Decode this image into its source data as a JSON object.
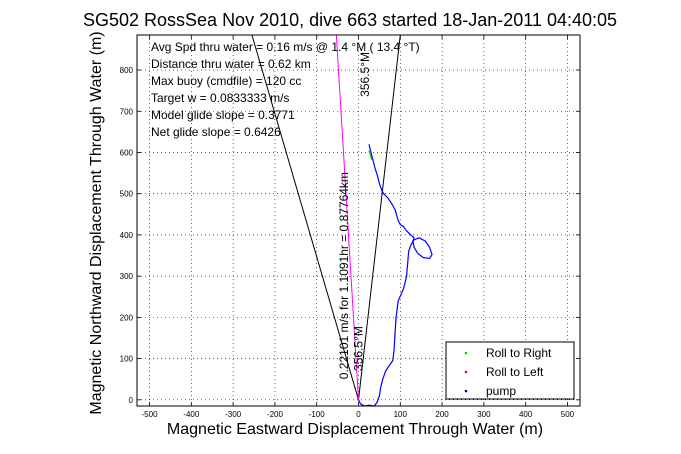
{
  "chart_data": {
    "type": "line",
    "title": "SG502 RossSea Nov 2010, dive 663 started 18-Jan-2011 04:40:05",
    "xlabel": "Magnetic Eastward Displacement Through Water (m)",
    "ylabel": "Magnetic Northward Displacement Through Water (m)",
    "xlim": [
      -530,
      530
    ],
    "ylim": [
      -15,
      885
    ],
    "xticks": [
      -500,
      -400,
      -300,
      -200,
      -100,
      0,
      100,
      200,
      300,
      400,
      500
    ],
    "yticks": [
      0,
      100,
      200,
      300,
      400,
      500,
      600,
      700,
      800
    ],
    "grid": true,
    "info_lines": [
      "Avg Spd thru water =  0.16 m/s @   1.4    °M ( 13.4 °T)",
      "Distance thru water =  0.62 km",
      "Max buoy (cmdfile) = 120 cc",
      "Target w = 0.0833333 m/s",
      "Model glide slope = 0.3771",
      "Net glide slope = 0.6426"
    ],
    "legend": {
      "placement": "bottom-right",
      "entries": [
        {
          "label": "Roll to Right",
          "color": "#00cc00",
          "marker": "dot"
        },
        {
          "label": "Roll to Left",
          "color": "#ff0000",
          "marker": "dot"
        },
        {
          "label": "pump",
          "color": "#000080",
          "marker": "dot"
        }
      ]
    },
    "annotations": [
      {
        "text": "0.22101 m/s for 1.1091hr = 0.87764km",
        "x": -25,
        "y": 50,
        "rotation": -90
      },
      {
        "text": "356.5°M",
        "x": 10,
        "y": 70,
        "rotation": -90
      },
      {
        "text": "356.5°M",
        "x": 25,
        "y": 735,
        "rotation": -90
      }
    ],
    "reference_lines": [
      {
        "name": "fan-left",
        "color": "#000000",
        "points": [
          [
            0,
            0
          ],
          [
            -255,
            885
          ]
        ]
      },
      {
        "name": "fan-right",
        "color": "#000000",
        "points": [
          [
            0,
            0
          ],
          [
            100,
            885
          ]
        ]
      },
      {
        "name": "heading-line",
        "color": "#ff00ff",
        "points": [
          [
            0,
            0
          ],
          [
            -53,
            885
          ]
        ]
      }
    ],
    "series": [
      {
        "color": "#0000ff",
        "points": [
          [
            0,
            0
          ],
          [
            5,
            -10
          ],
          [
            15,
            -15
          ],
          [
            25,
            -13
          ],
          [
            38,
            -15
          ],
          [
            45,
            -5
          ],
          [
            50,
            10
          ],
          [
            53,
            30
          ],
          [
            58,
            50
          ],
          [
            65,
            70
          ],
          [
            75,
            85
          ],
          [
            82,
            95
          ],
          [
            85,
            120
          ],
          [
            88,
            170
          ],
          [
            90,
            200
          ],
          [
            95,
            240
          ],
          [
            108,
            270
          ],
          [
            115,
            300
          ],
          [
            118,
            335
          ],
          [
            120,
            360
          ],
          [
            125,
            375
          ],
          [
            133,
            388
          ],
          [
            145,
            393
          ],
          [
            160,
            385
          ],
          [
            170,
            370
          ],
          [
            176,
            352
          ],
          [
            170,
            343
          ],
          [
            155,
            345
          ],
          [
            142,
            355
          ],
          [
            133,
            370
          ],
          [
            130,
            385
          ],
          [
            133,
            393
          ],
          [
            125,
            400
          ],
          [
            115,
            410
          ],
          [
            108,
            420
          ],
          [
            100,
            425
          ],
          [
            95,
            435
          ],
          [
            92,
            445
          ],
          [
            88,
            460
          ],
          [
            80,
            475
          ],
          [
            70,
            490
          ],
          [
            60,
            500
          ],
          [
            55,
            510
          ],
          [
            50,
            525
          ],
          [
            45,
            545
          ],
          [
            40,
            560
          ],
          [
            35,
            580
          ],
          [
            30,
            600
          ],
          [
            25,
            620
          ]
        ]
      },
      {
        "color": "#00cc00",
        "points": [
          [
            25,
            605
          ],
          [
            28,
            595
          ],
          [
            32,
            582
          ]
        ]
      }
    ]
  }
}
